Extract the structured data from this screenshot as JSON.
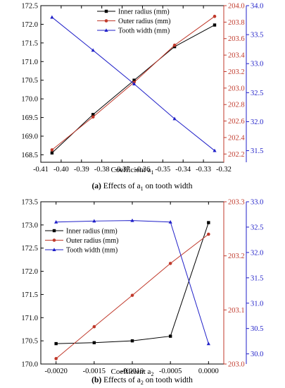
{
  "colors": {
    "inner": "#000000",
    "outer": "#c0392b",
    "tooth": "#1f1fc8",
    "axis": "#000000"
  },
  "chart_data": [
    {
      "type": "line",
      "caption_prefix": "(a)",
      "caption_text": "Effects of a",
      "caption_sub": "1",
      "caption_suffix": "on tooth width",
      "xlabel": "Coefficient a",
      "xlabel_sub": "1",
      "xlim": [
        -0.41,
        -0.32
      ],
      "xticks": [
        -0.41,
        -0.4,
        -0.39,
        -0.38,
        -0.37,
        -0.36,
        -0.35,
        -0.34,
        -0.33,
        -0.32
      ],
      "xtick_labels": [
        "-0.41",
        "-0.40",
        "-0.39",
        "-0.38",
        "-0.37",
        "-0.36",
        "-0.35",
        "-0.34",
        "-0.33",
        "-0.32"
      ],
      "x": [
        -0.4045,
        -0.3843,
        -0.3641,
        -0.3442,
        -0.3245
      ],
      "legend_position": "top-center",
      "axes": {
        "left": {
          "lim": [
            168.3,
            172.5
          ],
          "ticks": [
            "168.5",
            "169.0",
            "169.5",
            "170.0",
            "170.5",
            "171.0",
            "171.5",
            "172.0",
            "172.5"
          ],
          "color": "#000000"
        },
        "right1": {
          "lim": [
            202.1,
            204.0
          ],
          "ticks": [
            "202.2",
            "202.4",
            "202.6",
            "202.8",
            "203.0",
            "203.2",
            "203.4",
            "203.6",
            "203.8",
            "204.0"
          ],
          "color": "#c0392b"
        },
        "right2": {
          "lim": [
            31.3,
            34.0
          ],
          "ticks": [
            "31.5",
            "32.0",
            "32.5",
            "33.0",
            "33.5",
            "34.0"
          ],
          "color": "#1f1fc8"
        }
      },
      "series": [
        {
          "name": "Inner radius (mm)",
          "axis": "left",
          "marker": "square",
          "values": [
            168.55,
            169.58,
            170.5,
            171.4,
            171.98
          ]
        },
        {
          "name": "Outer radius (mm)",
          "axis": "right1",
          "marker": "circle",
          "values": [
            202.25,
            202.65,
            203.07,
            203.52,
            203.87
          ]
        },
        {
          "name": "Tooth width (mm)",
          "axis": "right2",
          "marker": "triangle",
          "values": [
            33.8,
            33.23,
            32.65,
            32.05,
            31.5
          ]
        }
      ]
    },
    {
      "type": "line",
      "caption_prefix": "(b)",
      "caption_text": "Effects of a",
      "caption_sub": "2",
      "caption_suffix": "on tooth width",
      "xlabel": "Coefficient a",
      "xlabel_sub": "2",
      "xlim": [
        -0.0022,
        0.0002
      ],
      "xticks": [
        -0.002,
        -0.0015,
        -0.001,
        -0.0005,
        0.0
      ],
      "xtick_labels": [
        "-0.0020",
        "-0.0015",
        "-0.0010",
        "-0.0005",
        "0.0000"
      ],
      "x": [
        -0.002,
        -0.0015,
        -0.001,
        -0.0005,
        0.0
      ],
      "legend_position": "top-left",
      "axes": {
        "left": {
          "lim": [
            170.0,
            173.5
          ],
          "ticks": [
            "170.0",
            "170.5",
            "171.0",
            "171.5",
            "172.0",
            "172.5",
            "173.0",
            "173.5"
          ],
          "color": "#000000"
        },
        "right1": {
          "lim": [
            203.0,
            203.3
          ],
          "ticks": [
            "203.0",
            "203.1",
            "203.2",
            "203.3"
          ],
          "color": "#c0392b"
        },
        "right2": {
          "lim": [
            29.8,
            33.0
          ],
          "ticks": [
            "30.0",
            "30.5",
            "31.0",
            "31.5",
            "32.0",
            "32.5",
            "33.0"
          ],
          "color": "#1f1fc8"
        }
      },
      "series": [
        {
          "name": "Inner radius (mm)",
          "axis": "left",
          "marker": "square",
          "values": [
            170.44,
            170.46,
            170.5,
            170.6,
            173.05
          ]
        },
        {
          "name": "Outer radius (mm)",
          "axis": "right1",
          "marker": "circle",
          "values": [
            203.01,
            203.069,
            203.127,
            203.186,
            203.24
          ]
        },
        {
          "name": "Tooth width (mm)",
          "axis": "right2",
          "marker": "triangle",
          "values": [
            32.6,
            32.62,
            32.63,
            32.6,
            30.2
          ]
        }
      ]
    }
  ]
}
